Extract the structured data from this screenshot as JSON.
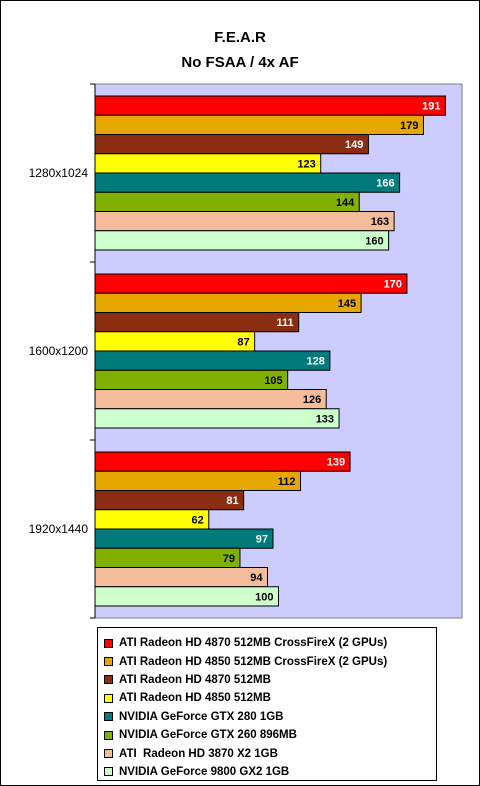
{
  "chart_data": {
    "type": "bar",
    "orientation": "horizontal",
    "title": "F.E.A.R",
    "subtitle": "No FSAA / 4x AF",
    "categories": [
      "1280x1024",
      "1600x1200",
      "1920x1440"
    ],
    "xlim": [
      0,
      200
    ],
    "grid": false,
    "legend_position": "bottom",
    "plot_background": "#ccccff",
    "series": [
      {
        "name": "ATI Radeon HD 4870 512MB CrossFireX (2 GPUs)",
        "color": "#ff0000",
        "label_color": "#ffffff",
        "values": [
          191,
          170,
          139
        ]
      },
      {
        "name": "ATI Radeon HD 4850 512MB CrossFireX (2 GPUs)",
        "color": "#e6a800",
        "label_color": "#000000",
        "values": [
          179,
          145,
          112
        ]
      },
      {
        "name": "ATI Radeon HD 4870 512MB",
        "color": "#8b2d10",
        "label_color": "#ffffff",
        "values": [
          149,
          111,
          81
        ]
      },
      {
        "name": "ATI Radeon HD 4850 512MB",
        "color": "#ffff00",
        "label_color": "#000000",
        "values": [
          123,
          87,
          62
        ]
      },
      {
        "name": "NVIDIA GeForce GTX 280 1GB",
        "color": "#007a7a",
        "label_color": "#ffffff",
        "values": [
          166,
          128,
          97
        ]
      },
      {
        "name": "NVIDIA GeForce GTX 260 896MB",
        "color": "#80b000",
        "label_color": "#000000",
        "values": [
          144,
          105,
          79
        ]
      },
      {
        "name": "ATI  Radeon HD 3870 X2 1GB",
        "color": "#f4bc9a",
        "label_color": "#000000",
        "values": [
          163,
          126,
          94
        ]
      },
      {
        "name": "NVIDIA GeForce 9800 GX2 1GB",
        "color": "#ccffcc",
        "label_color": "#000000",
        "values": [
          160,
          133,
          100
        ]
      }
    ]
  }
}
